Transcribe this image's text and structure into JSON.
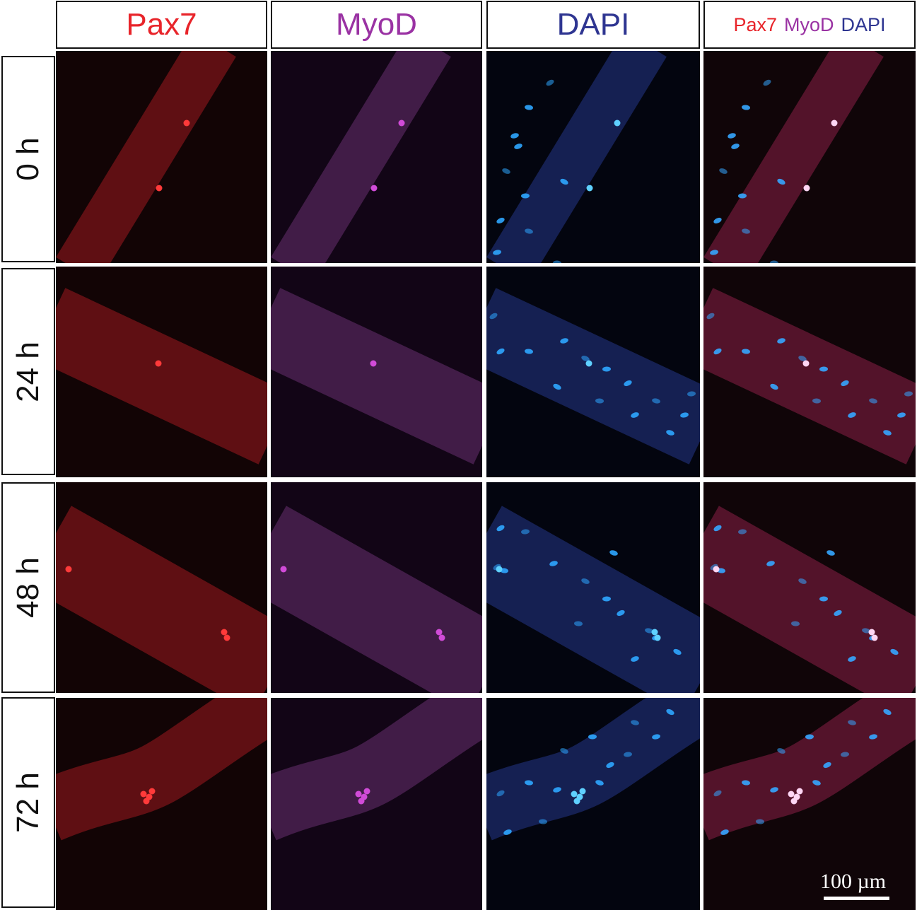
{
  "columns": [
    {
      "label": "Pax7",
      "color": "#e8242a"
    },
    {
      "label": "MyoD",
      "color": "#9a32a3"
    },
    {
      "label": "DAPI",
      "color": "#2e3591"
    }
  ],
  "merged_header": {
    "labels": [
      {
        "label": "Pax7",
        "color": "#e8242a"
      },
      {
        "label": "MyoD",
        "color": "#9a32a3"
      },
      {
        "label": "DAPI",
        "color": "#2e3591"
      }
    ]
  },
  "rows": [
    {
      "label": "0 h"
    },
    {
      "label": "24 h"
    },
    {
      "label": "48 h"
    },
    {
      "label": "72 h"
    }
  ],
  "scale_bar": {
    "label": "100 µm"
  }
}
